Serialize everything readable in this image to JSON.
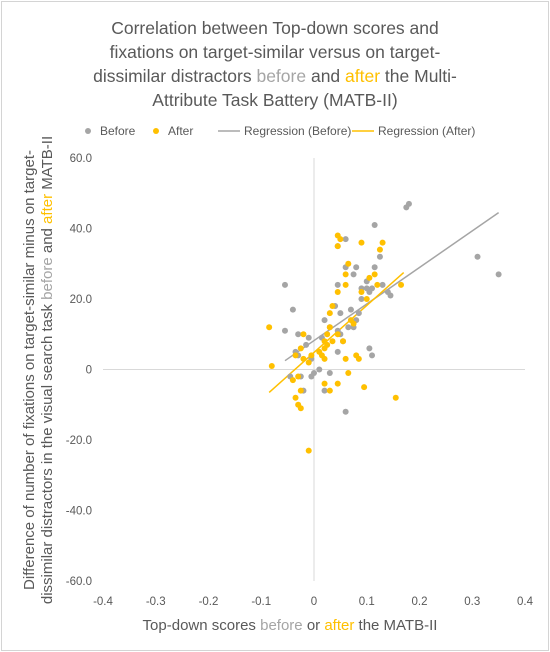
{
  "colors": {
    "before": "#a5a5a5",
    "after": "#ffc000",
    "text": "#595959",
    "axis": "#d9d9d9"
  },
  "chart_data": {
    "type": "scatter",
    "title_parts": [
      {
        "lines": [
          [
            {
              "text": "Correlation between Top-down scores and",
              "series": ""
            }
          ],
          [
            {
              "text": "fixations on target-similar versus on target-",
              "series": ""
            }
          ],
          [
            {
              "text": "dissimilar distractors ",
              "series": ""
            },
            {
              "text": "before",
              "series": "before"
            },
            {
              "text": " and ",
              "series": ""
            },
            {
              "text": "after",
              "series": "after"
            },
            {
              "text": " the Multi-",
              "series": ""
            }
          ],
          [
            {
              "text": "Attribute Task Battery (MATB-II)",
              "series": ""
            }
          ]
        ]
      }
    ],
    "xlabel_parts": [
      {
        "text": "Top-down scores ",
        "series": ""
      },
      {
        "text": "before",
        "series": "before"
      },
      {
        "text": " or ",
        "series": ""
      },
      {
        "text": "after",
        "series": "after"
      },
      {
        "text": " the MATB-II",
        "series": ""
      }
    ],
    "ylabel_line1": "Difference of number of fixations on target-similar minus on target-",
    "ylabel_line2_parts": [
      {
        "text": "dissimilar distractors in the visual search task ",
        "series": ""
      },
      {
        "text": "before",
        "series": "before"
      },
      {
        "text": " and ",
        "series": ""
      },
      {
        "text": "after",
        "series": "after"
      },
      {
        "text": " MATB-II",
        "series": ""
      }
    ],
    "xlim": [
      -0.4,
      0.4
    ],
    "ylim": [
      -60,
      60
    ],
    "x_ticks": [
      "-0.4",
      "-0.3",
      "-0.2",
      "-0.1",
      "0",
      "0.1",
      "0.2",
      "0.3",
      "0.4"
    ],
    "y_ticks": [
      "60.0",
      "40.0",
      "20.0",
      "0",
      "-20.0",
      "-40.0",
      "-60.0"
    ],
    "grid": false,
    "legend_position": "top",
    "legend": [
      {
        "label": "Before",
        "kind": "marker",
        "series": "before"
      },
      {
        "label": "After",
        "kind": "marker",
        "series": "after"
      },
      {
        "label": "Regression (Before)",
        "kind": "line",
        "series": "before"
      },
      {
        "label": "Regression (After)",
        "kind": "line",
        "series": "after"
      }
    ],
    "series": [
      {
        "name": "Before",
        "key": "before",
        "points": [
          [
            0.18,
            47
          ],
          [
            0.175,
            46
          ],
          [
            0.31,
            32
          ],
          [
            0.35,
            27
          ],
          [
            0.115,
            41
          ],
          [
            0.06,
            37
          ],
          [
            0.045,
            35
          ],
          [
            0.06,
            29
          ],
          [
            0.075,
            27
          ],
          [
            0.08,
            29
          ],
          [
            0.115,
            29
          ],
          [
            0.125,
            32
          ],
          [
            0.13,
            24
          ],
          [
            0.145,
            21
          ],
          [
            0.14,
            22
          ],
          [
            0.1,
            23
          ],
          [
            0.11,
            23
          ],
          [
            0.09,
            20
          ],
          [
            0.09,
            23
          ],
          [
            0.045,
            24
          ],
          [
            0.04,
            18
          ],
          [
            0.07,
            17
          ],
          [
            0.05,
            16
          ],
          [
            0.02,
            14
          ],
          [
            0.03,
            12
          ],
          [
            0.045,
            11
          ],
          [
            0.015,
            9
          ],
          [
            -0.055,
            24
          ],
          [
            -0.04,
            17
          ],
          [
            -0.055,
            11
          ],
          [
            -0.03,
            10
          ],
          [
            -0.01,
            9
          ],
          [
            -0.015,
            7
          ],
          [
            -0.035,
            5
          ],
          [
            -0.03,
            4
          ],
          [
            -0.005,
            3
          ],
          [
            0.05,
            10
          ],
          [
            0.075,
            12
          ],
          [
            0.08,
            14
          ],
          [
            0.085,
            16
          ],
          [
            0.105,
            22
          ],
          [
            0.1,
            25
          ],
          [
            -0.045,
            -2
          ],
          [
            -0.025,
            -2
          ],
          [
            -0.02,
            -6
          ],
          [
            -0.005,
            -2
          ],
          [
            0.0,
            -1
          ],
          [
            0.01,
            0
          ],
          [
            0.02,
            -6
          ],
          [
            0.03,
            -1
          ],
          [
            0.045,
            5
          ],
          [
            0.055,
            8
          ],
          [
            0.065,
            12
          ],
          [
            0.06,
            -12
          ],
          [
            0.105,
            6
          ],
          [
            0.11,
            4
          ]
        ]
      },
      {
        "name": "After",
        "key": "after",
        "points": [
          [
            0.045,
            38
          ],
          [
            0.05,
            37
          ],
          [
            0.125,
            34
          ],
          [
            0.13,
            36
          ],
          [
            0.045,
            35
          ],
          [
            0.09,
            36
          ],
          [
            0.06,
            27
          ],
          [
            0.065,
            30
          ],
          [
            0.115,
            27
          ],
          [
            0.105,
            26
          ],
          [
            0.12,
            24
          ],
          [
            0.165,
            24
          ],
          [
            0.1,
            20
          ],
          [
            0.09,
            22
          ],
          [
            0.045,
            22
          ],
          [
            0.06,
            24
          ],
          [
            0.035,
            18
          ],
          [
            0.03,
            16
          ],
          [
            0.07,
            14
          ],
          [
            0.075,
            13
          ],
          [
            0.045,
            10
          ],
          [
            0.055,
            8
          ],
          [
            0.02,
            6
          ],
          [
            0.025,
            7
          ],
          [
            0.015,
            4
          ],
          [
            0.01,
            5
          ],
          [
            0.02,
            3
          ],
          [
            -0.005,
            4
          ],
          [
            -0.01,
            2
          ],
          [
            -0.02,
            3
          ],
          [
            -0.035,
            4
          ],
          [
            -0.025,
            6
          ],
          [
            -0.02,
            10
          ],
          [
            0.03,
            12
          ],
          [
            0.035,
            8
          ],
          [
            -0.085,
            12
          ],
          [
            -0.08,
            1
          ],
          [
            -0.04,
            -3
          ],
          [
            -0.03,
            -2
          ],
          [
            -0.025,
            -6
          ],
          [
            -0.035,
            -8
          ],
          [
            -0.03,
            -10
          ],
          [
            -0.025,
            -11
          ],
          [
            0.02,
            -4
          ],
          [
            0.03,
            -6
          ],
          [
            0.045,
            -4
          ],
          [
            0.065,
            -1
          ],
          [
            0.06,
            3
          ],
          [
            0.08,
            4
          ],
          [
            0.085,
            3
          ],
          [
            0.095,
            -5
          ],
          [
            0.155,
            -8
          ],
          [
            -0.01,
            -23
          ],
          [
            0.02,
            8
          ],
          [
            0.025,
            10
          ]
        ]
      }
    ],
    "regressions": [
      {
        "name": "Regression (Before)",
        "key": "before",
        "x1": -0.055,
        "y1": 2.5,
        "x2": 0.35,
        "y2": 44.5
      },
      {
        "name": "Regression (After)",
        "key": "after",
        "x1": -0.085,
        "y1": -6.5,
        "x2": 0.17,
        "y2": 27.5
      }
    ]
  }
}
